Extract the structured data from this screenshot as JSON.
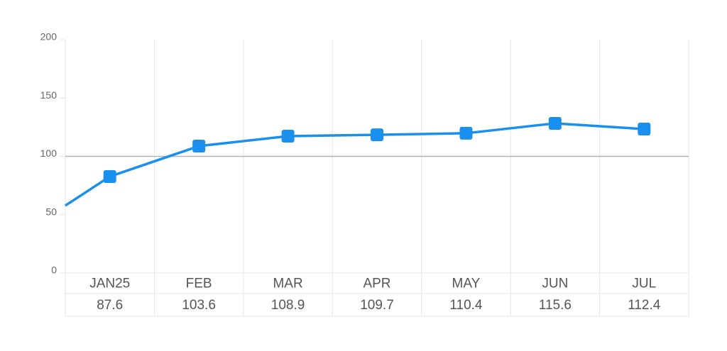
{
  "chart_data": {
    "type": "line",
    "categories": [
      "JAN25",
      "FEB",
      "MAR",
      "APR",
      "MAY",
      "JUN",
      "JUL"
    ],
    "series": [
      {
        "color": "#1a90ee",
        "x": [
          -0.5,
          0,
          1,
          2,
          3,
          4,
          5,
          6
        ],
        "values": [
          57.8,
          82.7,
          108.8,
          117.3,
          118.5,
          119.8,
          128.3,
          123.4
        ]
      }
    ],
    "table_values": [
      {
        "value": 87.6,
        "label": "87.6"
      },
      {
        "value": 103.6,
        "label": "103.6"
      },
      {
        "value": 108.9,
        "label": "108.9"
      },
      {
        "value": 109.7,
        "label": "109.7"
      },
      {
        "value": 110.4,
        "label": "110.4"
      },
      {
        "value": 115.6,
        "label": "115.6"
      },
      {
        "value": 112.4,
        "label": "112.4"
      }
    ],
    "xlim": [
      -0.5,
      6.5
    ],
    "ylim": [
      0,
      200
    ],
    "yticks": [
      0,
      50,
      100,
      150,
      200
    ],
    "reference_line": 100
  }
}
